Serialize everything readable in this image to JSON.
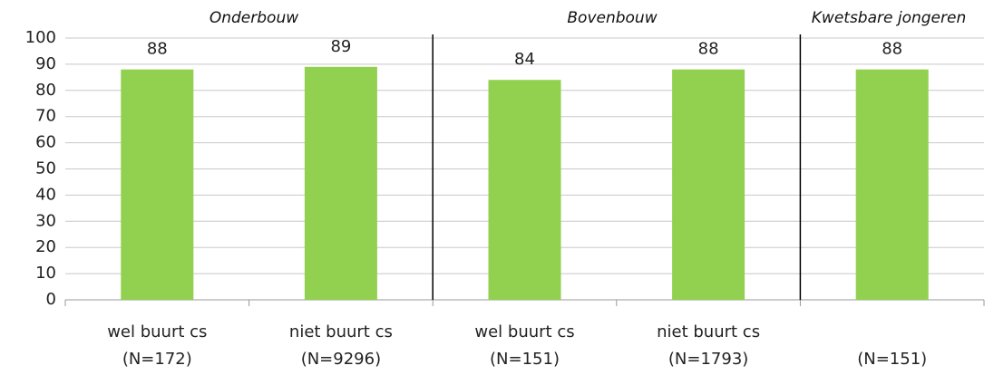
{
  "chart_data": {
    "type": "bar",
    "groups": [
      "Onderbouw",
      "Bovenbouw",
      "Kwetsbare jongeren"
    ],
    "categories": [
      [
        "wel buurt cs",
        "(N=172)"
      ],
      [
        "niet buurt cs",
        "(N=9296)"
      ],
      [
        "wel buurt cs",
        "(N=151)"
      ],
      [
        "niet buurt cs",
        "(N=1793)"
      ],
      [
        "(N=151)"
      ]
    ],
    "values": [
      88,
      89,
      84,
      88,
      88
    ],
    "color": "#92d050",
    "ylim": [
      0,
      100
    ],
    "yticks": [
      0,
      10,
      20,
      30,
      40,
      50,
      60,
      70,
      80,
      90,
      100
    ],
    "grid": true
  }
}
